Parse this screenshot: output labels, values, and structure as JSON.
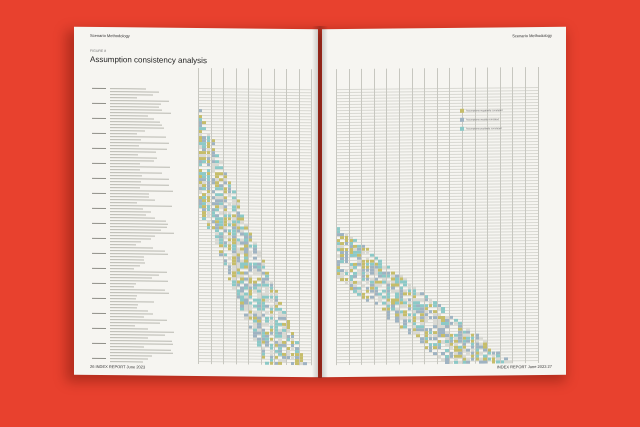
{
  "left_page": {
    "header": "Scenario Methodology",
    "figure_label": "FIGURE 8",
    "title": "Assumption consistency analysis",
    "footer": "26  INDEX REPORT June 2023"
  },
  "right_page": {
    "header": "Scenario Methodology",
    "footer": "INDEX REPORT June 2023  27"
  },
  "colors": {
    "background": "#e8412e",
    "paper": "#f6f5f1",
    "teal": "#8cc9c7",
    "olive": "#c6bd6a",
    "grey_blue": "#9fb3c2",
    "light_grey": "#d9d9d3"
  },
  "legend": [
    {
      "color": "#c6bd6a",
      "text": "Assumptions negatively correlated"
    },
    {
      "color": "#9fb3c2",
      "text": "Assumptions weakly correlated"
    },
    {
      "color": "#8cc9c7",
      "text": "Assumptions positively correlated"
    }
  ]
}
